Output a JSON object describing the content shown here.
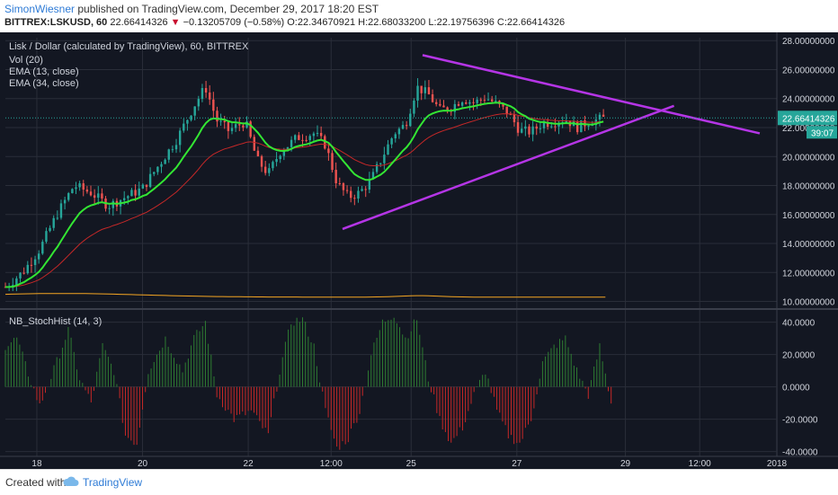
{
  "header": {
    "author": "SimonWiesner",
    "published_text": "published on TradingView.com, December 29, 2017 18:20 EST",
    "symbol": "BITTREX:LSKUSD, 60",
    "last": "22.66414326",
    "change": "−0.13205709 (−0.58%)",
    "ohlc": "O:22.34670921 H:22.68033200 L:22.19756396 C:22.66414326"
  },
  "legend": {
    "title": "Lisk / Dollar (calculated by TradingView), 60, BITTREX",
    "vol": "Vol (20)",
    "ema13": "EMA (13, close)",
    "ema34": "EMA (34, close)",
    "osc": "NB_StochHist (14, 3)"
  },
  "footer": {
    "created_with": "Created with",
    "brand": "TradingView"
  },
  "price_tag": {
    "value": "22.66414326",
    "countdown": "39:07"
  },
  "colors": {
    "up": "#26a69a",
    "down": "#ef5350",
    "ema13": "#33e633",
    "ema34": "#c62828",
    "volume_ma": "#f5a623",
    "trendline": "#b535e6",
    "hist_up": "#2e7d32",
    "hist_down": "#c62828",
    "background": "#131722",
    "grid": "#2a2e39"
  },
  "chart_data": [
    {
      "type": "line",
      "subtype": "candlestick",
      "symbol": "LSKUSD",
      "interval": "60",
      "x_ticks": [
        "18",
        "20",
        "22",
        "12:00",
        "25",
        "27",
        "29",
        "12:00",
        "2018"
      ],
      "y_ticks": [
        "28.00000000",
        "26.00000000",
        "24.00000000",
        "22.00000000",
        "20.00000000",
        "18.00000000",
        "16.00000000",
        "14.00000000",
        "12.00000000",
        "10.00000000"
      ],
      "ylim": [
        9.6,
        28.2
      ],
      "price_path": [
        {
          "t": 0,
          "p": 11.0
        },
        {
          "t": 6,
          "p": 12.0
        },
        {
          "t": 12,
          "p": 13.6
        },
        {
          "t": 18,
          "p": 16.0
        },
        {
          "t": 24,
          "p": 18.0
        },
        {
          "t": 30,
          "p": 17.5
        },
        {
          "t": 36,
          "p": 16.6
        },
        {
          "t": 42,
          "p": 17.2
        },
        {
          "t": 48,
          "p": 17.8
        },
        {
          "t": 54,
          "p": 19.5
        },
        {
          "t": 60,
          "p": 21.2
        },
        {
          "t": 66,
          "p": 23.5
        },
        {
          "t": 70,
          "p": 24.8
        },
        {
          "t": 74,
          "p": 22.5
        },
        {
          "t": 78,
          "p": 21.8
        },
        {
          "t": 84,
          "p": 22.4
        },
        {
          "t": 88,
          "p": 19.8
        },
        {
          "t": 92,
          "p": 18.8
        },
        {
          "t": 96,
          "p": 20.3
        },
        {
          "t": 102,
          "p": 21.3
        },
        {
          "t": 108,
          "p": 21.6
        },
        {
          "t": 112,
          "p": 20.8
        },
        {
          "t": 116,
          "p": 18.2
        },
        {
          "t": 120,
          "p": 17.2
        },
        {
          "t": 124,
          "p": 17.5
        },
        {
          "t": 128,
          "p": 18.4
        },
        {
          "t": 132,
          "p": 20.0
        },
        {
          "t": 136,
          "p": 21.6
        },
        {
          "t": 140,
          "p": 22.2
        },
        {
          "t": 144,
          "p": 24.8
        },
        {
          "t": 148,
          "p": 24.3
        },
        {
          "t": 152,
          "p": 23.2
        },
        {
          "t": 156,
          "p": 23.4
        },
        {
          "t": 160,
          "p": 24.0
        },
        {
          "t": 164,
          "p": 23.7
        },
        {
          "t": 168,
          "p": 24.1
        },
        {
          "t": 172,
          "p": 23.6
        },
        {
          "t": 176,
          "p": 23.0
        },
        {
          "t": 180,
          "p": 21.8
        },
        {
          "t": 184,
          "p": 21.7
        },
        {
          "t": 188,
          "p": 22.3
        },
        {
          "t": 192,
          "p": 22.4
        },
        {
          "t": 196,
          "p": 22.6
        },
        {
          "t": 200,
          "p": 22.0
        },
        {
          "t": 204,
          "p": 22.4
        },
        {
          "t": 210,
          "p": 22.66
        }
      ],
      "last_price": 22.66414326,
      "trendlines": [
        {
          "from": {
            "t": 146,
            "p": 27.0
          },
          "to": {
            "t": 264,
            "p": 21.6
          }
        },
        {
          "from": {
            "t": 118,
            "p": 15.0
          },
          "to": {
            "t": 234,
            "p": 23.5
          }
        }
      ]
    },
    {
      "type": "bar",
      "name": "NB_StochHist (14, 3)",
      "y_ticks": [
        "40.0000",
        "20.0000",
        "0.0000",
        "-20.0000",
        "-40.0000"
      ],
      "ylim": [
        -43,
        47
      ],
      "hist_path": [
        {
          "t": 0,
          "v": 25
        },
        {
          "t": 4,
          "v": 30
        },
        {
          "t": 8,
          "v": 8
        },
        {
          "t": 12,
          "v": -12
        },
        {
          "t": 16,
          "v": 6
        },
        {
          "t": 22,
          "v": 35
        },
        {
          "t": 26,
          "v": 5
        },
        {
          "t": 30,
          "v": -10
        },
        {
          "t": 34,
          "v": 25
        },
        {
          "t": 38,
          "v": 10
        },
        {
          "t": 42,
          "v": -30
        },
        {
          "t": 46,
          "v": -35
        },
        {
          "t": 50,
          "v": 10
        },
        {
          "t": 56,
          "v": 30
        },
        {
          "t": 62,
          "v": 10
        },
        {
          "t": 66,
          "v": 30
        },
        {
          "t": 70,
          "v": 40
        },
        {
          "t": 74,
          "v": -5
        },
        {
          "t": 80,
          "v": -20
        },
        {
          "t": 86,
          "v": -15
        },
        {
          "t": 92,
          "v": -30
        },
        {
          "t": 96,
          "v": 10
        },
        {
          "t": 100,
          "v": 40
        },
        {
          "t": 104,
          "v": 42
        },
        {
          "t": 108,
          "v": 25
        },
        {
          "t": 112,
          "v": -15
        },
        {
          "t": 116,
          "v": -38
        },
        {
          "t": 120,
          "v": -32
        },
        {
          "t": 124,
          "v": -15
        },
        {
          "t": 128,
          "v": 20
        },
        {
          "t": 132,
          "v": 40
        },
        {
          "t": 136,
          "v": 45
        },
        {
          "t": 140,
          "v": 30
        },
        {
          "t": 144,
          "v": 42
        },
        {
          "t": 148,
          "v": 5
        },
        {
          "t": 152,
          "v": -20
        },
        {
          "t": 156,
          "v": -35
        },
        {
          "t": 160,
          "v": -25
        },
        {
          "t": 164,
          "v": -5
        },
        {
          "t": 168,
          "v": 10
        },
        {
          "t": 172,
          "v": -15
        },
        {
          "t": 176,
          "v": -30
        },
        {
          "t": 180,
          "v": -35
        },
        {
          "t": 184,
          "v": -20
        },
        {
          "t": 188,
          "v": 15
        },
        {
          "t": 192,
          "v": 25
        },
        {
          "t": 196,
          "v": 30
        },
        {
          "t": 200,
          "v": 10
        },
        {
          "t": 204,
          "v": -5
        },
        {
          "t": 208,
          "v": 25
        },
        {
          "t": 212,
          "v": -10
        }
      ]
    }
  ]
}
